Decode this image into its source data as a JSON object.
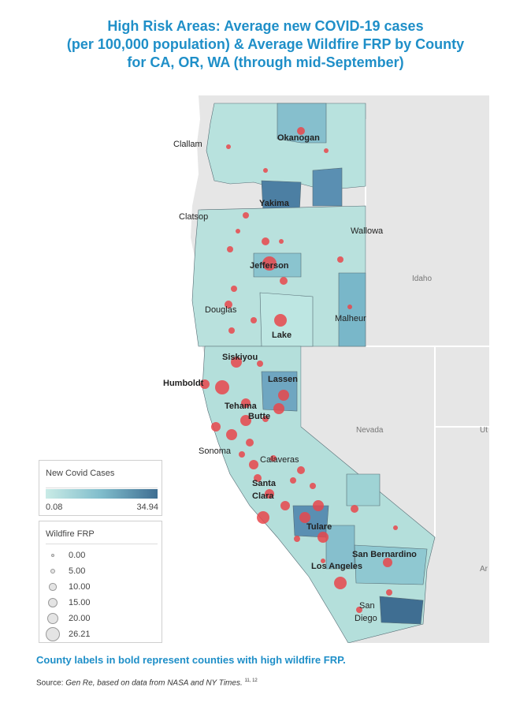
{
  "title_lines": [
    "High Risk Areas: Average new COVID-19 cases",
    "(per 100,000 population) & Average Wildfire FRP by County",
    "for CA, OR, WA (through mid-September)"
  ],
  "map": {
    "states": [
      "Idaho",
      "Nevada",
      "Ut",
      "Ar"
    ],
    "counties_bold": [
      "Okanogan",
      "Yakima",
      "Jefferson",
      "Lake",
      "Siskiyou",
      "Humboldt",
      "Lassen",
      "Tehama",
      "Butte",
      "Santa",
      "Clara",
      "Tulare",
      "San Bernardino",
      "Los Angeles"
    ],
    "counties_plain": [
      "Clallam",
      "Clatsop",
      "Wallowa",
      "Douglas",
      "Malheur",
      "Sonoma",
      "Calaveras",
      "San",
      "Diego"
    ],
    "colors": {
      "ocean": "#ffffff",
      "land_bg": "#e6e6e6",
      "low": "#c9ebe6",
      "mid": "#7fbccb",
      "high": "#4c7fa3",
      "dot": "#e8474b",
      "state_line": "#ffffff",
      "border": "#555555"
    }
  },
  "legend": {
    "covid": {
      "title": "New Covid Cases",
      "min": "0.08",
      "max": "34.94"
    },
    "frp": {
      "title": "Wildfire FRP",
      "items": [
        "0.00",
        "5.00",
        "10.00",
        "15.00",
        "20.00",
        "26.21"
      ],
      "values": [
        0,
        5,
        10,
        15,
        20,
        26.21
      ]
    }
  },
  "note": "County labels in bold represent counties with high wildfire FRP.",
  "source": {
    "prefix": "Source: ",
    "text": "Gen Re, based on data from NASA and NY Times.",
    "refs": "11, 12"
  }
}
